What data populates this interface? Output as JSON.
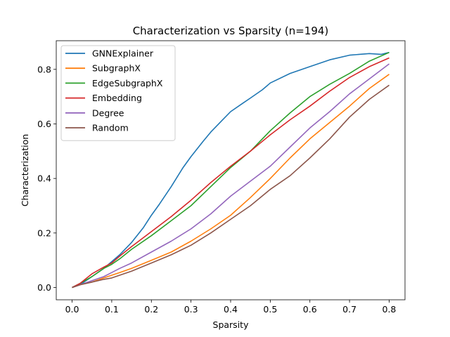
{
  "chart_data": {
    "type": "line",
    "title": "Characterization vs Sparsity (n=194)",
    "xlabel": "Sparsity",
    "ylabel": "Characterization",
    "xlim": [
      -0.04,
      0.84
    ],
    "ylim": [
      -0.045,
      0.905
    ],
    "xticks": [
      0.0,
      0.1,
      0.2,
      0.3,
      0.4,
      0.5,
      0.6,
      0.7,
      0.8
    ],
    "yticks": [
      0.0,
      0.2,
      0.4,
      0.6,
      0.8
    ],
    "xtick_labels": [
      "0.0",
      "0.1",
      "0.2",
      "0.3",
      "0.4",
      "0.5",
      "0.6",
      "0.7",
      "0.8"
    ],
    "ytick_labels": [
      "0.0",
      "0.2",
      "0.4",
      "0.6",
      "0.8"
    ],
    "grid": false,
    "legend_position": "top-left",
    "series": [
      {
        "name": "GNNExplainer",
        "color": "#1f77b4",
        "x": [
          0.0,
          0.02,
          0.05,
          0.08,
          0.1,
          0.12,
          0.15,
          0.18,
          0.2,
          0.22,
          0.25,
          0.28,
          0.3,
          0.33,
          0.35,
          0.38,
          0.4,
          0.43,
          0.45,
          0.48,
          0.5,
          0.55,
          0.6,
          0.65,
          0.7,
          0.75,
          0.78,
          0.8
        ],
        "y": [
          0.0,
          0.01,
          0.04,
          0.07,
          0.095,
          0.12,
          0.165,
          0.22,
          0.265,
          0.305,
          0.37,
          0.44,
          0.48,
          0.535,
          0.57,
          0.615,
          0.645,
          0.675,
          0.695,
          0.725,
          0.75,
          0.785,
          0.81,
          0.835,
          0.852,
          0.858,
          0.855,
          0.862
        ]
      },
      {
        "name": "SubgraphX",
        "color": "#ff7f0e",
        "x": [
          0.0,
          0.02,
          0.05,
          0.08,
          0.1,
          0.12,
          0.15,
          0.2,
          0.25,
          0.3,
          0.35,
          0.4,
          0.45,
          0.5,
          0.55,
          0.6,
          0.65,
          0.7,
          0.75,
          0.8
        ],
        "y": [
          0.0,
          0.01,
          0.02,
          0.035,
          0.045,
          0.055,
          0.07,
          0.1,
          0.13,
          0.17,
          0.215,
          0.265,
          0.33,
          0.4,
          0.475,
          0.545,
          0.605,
          0.665,
          0.73,
          0.782
        ]
      },
      {
        "name": "EdgeSubgraphX",
        "color": "#2ca02c",
        "x": [
          0.0,
          0.02,
          0.05,
          0.08,
          0.1,
          0.12,
          0.15,
          0.2,
          0.25,
          0.3,
          0.35,
          0.4,
          0.45,
          0.5,
          0.55,
          0.6,
          0.65,
          0.7,
          0.75,
          0.8
        ],
        "y": [
          0.0,
          0.015,
          0.04,
          0.07,
          0.085,
          0.105,
          0.14,
          0.19,
          0.245,
          0.3,
          0.37,
          0.44,
          0.5,
          0.575,
          0.64,
          0.7,
          0.745,
          0.785,
          0.83,
          0.862
        ]
      },
      {
        "name": "Embedding",
        "color": "#d62728",
        "x": [
          0.0,
          0.02,
          0.05,
          0.08,
          0.1,
          0.12,
          0.15,
          0.2,
          0.25,
          0.3,
          0.35,
          0.4,
          0.45,
          0.5,
          0.55,
          0.6,
          0.65,
          0.7,
          0.75,
          0.8
        ],
        "y": [
          0.0,
          0.015,
          0.05,
          0.075,
          0.09,
          0.115,
          0.15,
          0.205,
          0.26,
          0.32,
          0.385,
          0.445,
          0.5,
          0.56,
          0.615,
          0.665,
          0.72,
          0.77,
          0.81,
          0.842
        ]
      },
      {
        "name": "Degree",
        "color": "#9467bd",
        "x": [
          0.0,
          0.02,
          0.05,
          0.08,
          0.1,
          0.12,
          0.15,
          0.2,
          0.25,
          0.3,
          0.35,
          0.4,
          0.45,
          0.5,
          0.55,
          0.6,
          0.65,
          0.7,
          0.75,
          0.8
        ],
        "y": [
          0.0,
          0.01,
          0.025,
          0.04,
          0.055,
          0.07,
          0.09,
          0.13,
          0.17,
          0.215,
          0.27,
          0.335,
          0.39,
          0.445,
          0.515,
          0.585,
          0.645,
          0.71,
          0.765,
          0.82
        ]
      },
      {
        "name": "Random",
        "color": "#8c564b",
        "x": [
          0.0,
          0.02,
          0.05,
          0.08,
          0.1,
          0.12,
          0.15,
          0.2,
          0.25,
          0.3,
          0.35,
          0.4,
          0.45,
          0.5,
          0.55,
          0.6,
          0.65,
          0.7,
          0.75,
          0.8
        ],
        "y": [
          0.0,
          0.01,
          0.02,
          0.03,
          0.035,
          0.045,
          0.06,
          0.09,
          0.12,
          0.155,
          0.2,
          0.25,
          0.3,
          0.36,
          0.41,
          0.475,
          0.545,
          0.625,
          0.69,
          0.742
        ]
      }
    ]
  }
}
